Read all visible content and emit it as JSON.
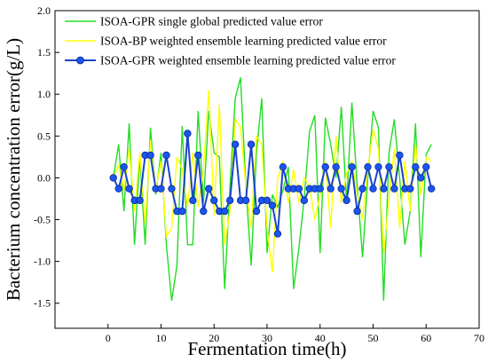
{
  "chart_data": {
    "type": "line",
    "xlabel": "Fermentation time(h)",
    "ylabel": "Bacterium concentration error(g/L)",
    "xlim": [
      -10,
      70
    ],
    "ylim": [
      -1.8,
      2.0
    ],
    "xticks": [
      0,
      10,
      20,
      30,
      40,
      50,
      60,
      70
    ],
    "yticks": [
      -1.5,
      -1.0,
      -0.5,
      0.0,
      0.5,
      1.0,
      1.5,
      2.0
    ],
    "ytick_labels": [
      "-1.5",
      "-1.0",
      "-0.5",
      "0.0",
      "0.5",
      "1.0",
      "1.5",
      "2.0"
    ],
    "legend_position": "top",
    "series": [
      {
        "name": "ISOA-GPR single global predicted value error",
        "color": "#22dd22",
        "marker": "none",
        "x": [
          1,
          2,
          3,
          4,
          5,
          6,
          7,
          8,
          9,
          10,
          11,
          12,
          13,
          14,
          15,
          16,
          17,
          18,
          19,
          20,
          21,
          22,
          23,
          24,
          25,
          26,
          27,
          28,
          29,
          30,
          31,
          32,
          33,
          34,
          35,
          36,
          37,
          38,
          39,
          40,
          41,
          42,
          43,
          44,
          45,
          46,
          47,
          48,
          49,
          50,
          51,
          52,
          53,
          54,
          55,
          56,
          57,
          58,
          59,
          60,
          61
        ],
        "values": [
          0.0,
          0.4,
          -0.4,
          0.65,
          -0.8,
          0.25,
          -0.8,
          0.6,
          -0.2,
          0.3,
          -0.8,
          -1.47,
          -1.05,
          0.62,
          -0.8,
          -0.8,
          0.8,
          -0.3,
          0.8,
          0.3,
          0.25,
          -1.33,
          -0.1,
          0.95,
          1.2,
          -0.1,
          -1.05,
          0.3,
          0.95,
          -0.9,
          -0.2,
          -0.35,
          -0.15,
          0.13,
          -1.33,
          -0.85,
          -0.25,
          0.55,
          0.75,
          -0.9,
          0.72,
          0.4,
          0.0,
          0.85,
          -0.3,
          0.9,
          -0.1,
          -0.95,
          0.0,
          0.8,
          0.6,
          -1.47,
          0.3,
          0.7,
          0.0,
          -0.8,
          -0.4,
          0.65,
          -0.95,
          0.28,
          0.4
        ]
      },
      {
        "name": "ISOA-BP weighted ensemble learning predicted value error",
        "color": "#ffff00",
        "marker": "none",
        "x": [
          1,
          2,
          3,
          4,
          5,
          6,
          7,
          8,
          9,
          10,
          11,
          12,
          13,
          14,
          15,
          16,
          17,
          18,
          19,
          20,
          21,
          22,
          23,
          24,
          25,
          26,
          27,
          28,
          29,
          30,
          31,
          32,
          33,
          34,
          35,
          36,
          37,
          38,
          39,
          40,
          41,
          42,
          43,
          44,
          45,
          46,
          47,
          48,
          49,
          50,
          51,
          52,
          53,
          54,
          55,
          56,
          57,
          58,
          59,
          60,
          61
        ],
        "values": [
          0.0,
          0.15,
          -0.15,
          0.35,
          -0.4,
          0.3,
          -0.55,
          0.45,
          -0.15,
          0.2,
          -0.7,
          -0.6,
          0.25,
          0.1,
          -0.35,
          0.3,
          -0.35,
          0.1,
          1.05,
          -0.45,
          0.88,
          -0.8,
          -0.4,
          0.7,
          0.6,
          -0.1,
          -0.6,
          0.5,
          0.4,
          -0.6,
          -1.13,
          0.0,
          0.2,
          -0.3,
          0.1,
          -0.3,
          0.0,
          -0.1,
          -0.5,
          -0.2,
          0.2,
          -0.6,
          0.5,
          -0.3,
          0.05,
          0.2,
          -0.2,
          -0.5,
          0.1,
          0.58,
          0.35,
          -0.9,
          -0.25,
          0.35,
          -0.6,
          0.2,
          -0.4,
          0.4,
          -0.2,
          0.25,
          0.2
        ]
      },
      {
        "name": "ISOA-GPR weighted ensemble learning predicted value error",
        "color": "#1a44cc",
        "marker": "circle",
        "x": [
          1,
          2,
          3,
          4,
          5,
          6,
          7,
          8,
          9,
          10,
          11,
          12,
          13,
          14,
          15,
          16,
          17,
          18,
          19,
          20,
          21,
          22,
          23,
          24,
          25,
          26,
          27,
          28,
          29,
          30,
          31,
          32,
          33,
          34,
          35,
          36,
          37,
          38,
          39,
          40,
          41,
          42,
          43,
          44,
          45,
          46,
          47,
          48,
          49,
          50,
          51,
          52,
          53,
          54,
          55,
          56,
          57,
          58,
          59,
          60,
          61
        ],
        "values": [
          0.0,
          -0.13,
          0.13,
          -0.13,
          -0.27,
          -0.27,
          0.27,
          0.27,
          -0.13,
          -0.13,
          0.27,
          -0.13,
          -0.4,
          -0.4,
          0.53,
          -0.27,
          0.27,
          -0.4,
          -0.13,
          -0.27,
          -0.4,
          -0.4,
          -0.27,
          0.4,
          -0.27,
          -0.27,
          0.4,
          -0.4,
          -0.27,
          -0.27,
          -0.33,
          -0.67,
          0.13,
          -0.13,
          -0.13,
          -0.13,
          -0.27,
          -0.13,
          -0.13,
          -0.13,
          0.13,
          -0.13,
          0.13,
          -0.13,
          -0.27,
          0.13,
          -0.4,
          -0.13,
          0.13,
          -0.13,
          0.13,
          -0.13,
          0.13,
          -0.13,
          0.27,
          -0.13,
          -0.13,
          0.13,
          0.0,
          0.13,
          -0.13
        ]
      }
    ]
  }
}
